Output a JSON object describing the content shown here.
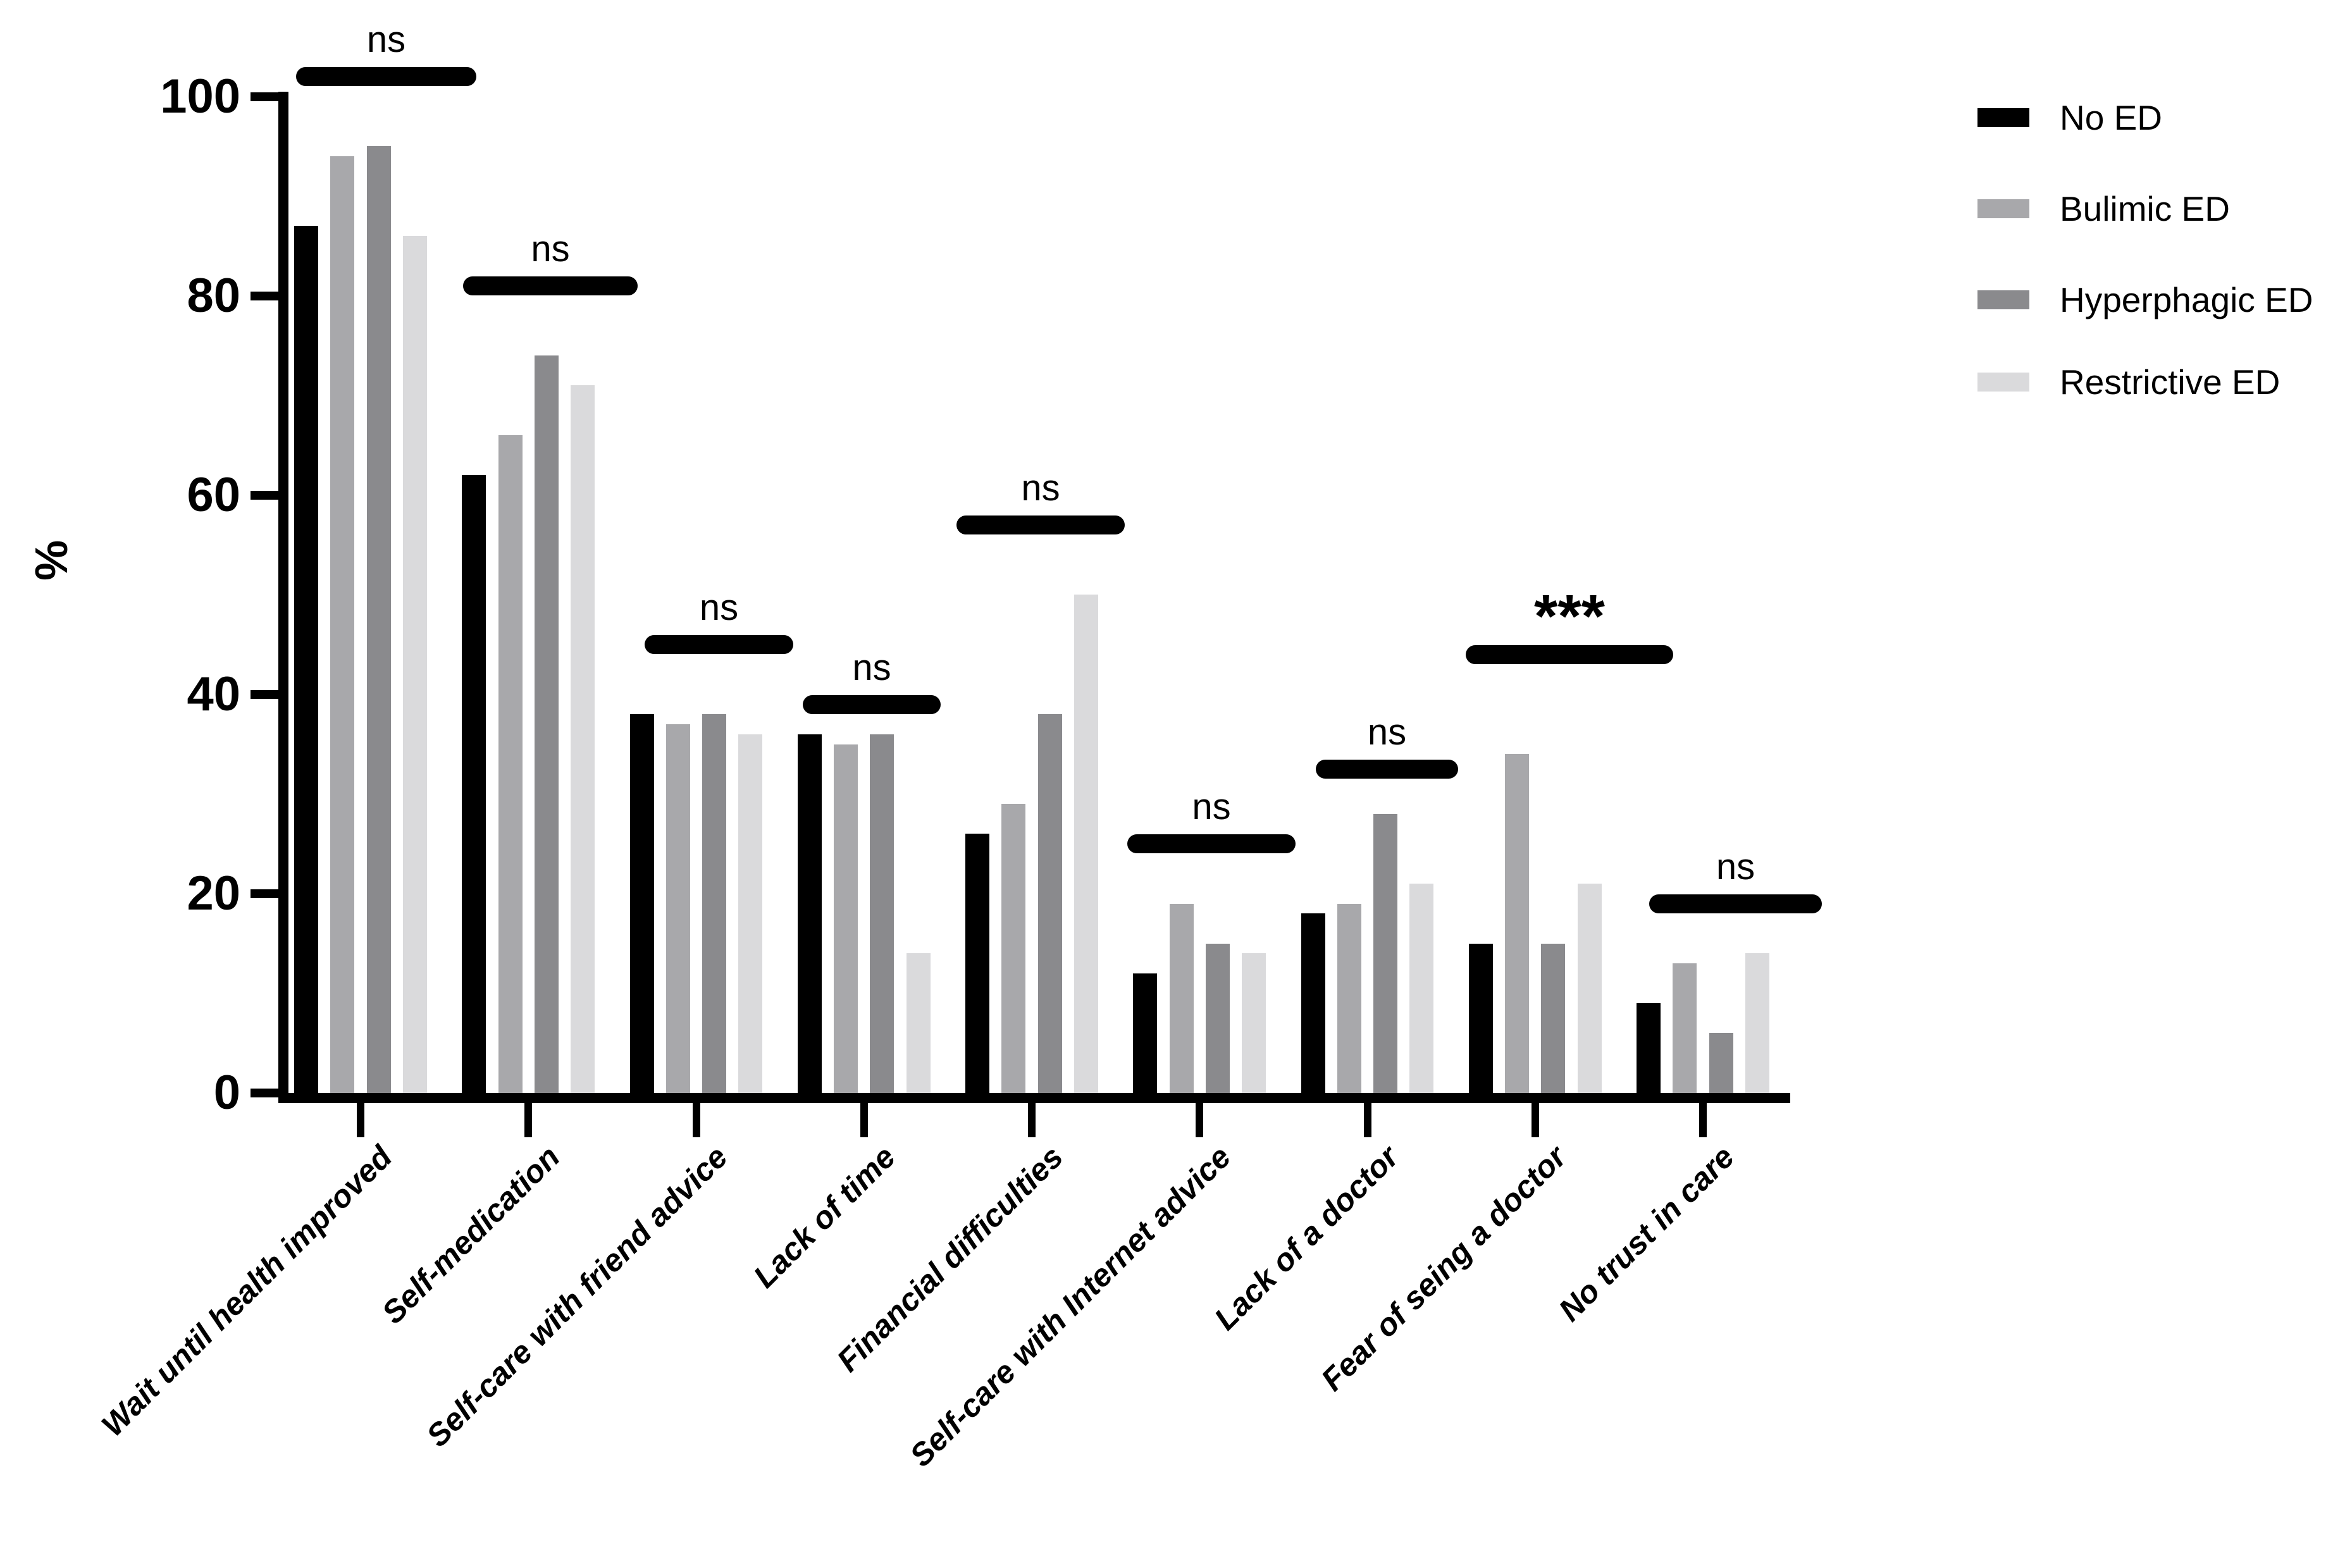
{
  "figure": {
    "background": "#ffffff",
    "text_color": "#000000"
  },
  "chart_data": {
    "type": "bar",
    "title": "",
    "xlabel": "",
    "ylabel": "%",
    "ylim": [
      0,
      100
    ],
    "yticks": [
      0,
      20,
      40,
      60,
      80,
      100
    ],
    "grid": false,
    "legend_position": "top-right",
    "categories": [
      "Wait until health improved",
      "Self-medication",
      "Self-care with friend advice",
      "Lack of time",
      "Financial difficulties",
      "Self-care with Internet advice",
      "Lack of a doctor",
      "Fear of seing a doctor",
      "No trust in care"
    ],
    "series": [
      {
        "name": "No ED",
        "color": "#000000",
        "values": [
          87,
          62,
          38,
          36,
          26,
          12,
          18,
          15,
          9
        ]
      },
      {
        "name": "Bulimic ED",
        "color": "#a8a8ab",
        "values": [
          94,
          66,
          37,
          35,
          29,
          19,
          19,
          34,
          13
        ]
      },
      {
        "name": "Hyperphagic ED",
        "color": "#8a8a8d",
        "values": [
          95,
          74,
          38,
          36,
          38,
          15,
          28,
          15,
          6
        ]
      },
      {
        "name": "Restrictive ED",
        "color": "#dadadc",
        "values": [
          86,
          71,
          36,
          14,
          50,
          14,
          21,
          21,
          14
        ]
      }
    ],
    "annotations": [
      {
        "label": "ns",
        "y_pct": 102,
        "x1": 468,
        "x2": 753
      },
      {
        "label": "ns",
        "y_pct": 81,
        "x1": 732,
        "x2": 1008
      },
      {
        "label": "ns",
        "y_pct": 45,
        "x1": 1019,
        "x2": 1254
      },
      {
        "label": "ns",
        "y_pct": 39,
        "x1": 1269,
        "x2": 1487
      },
      {
        "label": "ns",
        "y_pct": 57,
        "x1": 1512,
        "x2": 1778
      },
      {
        "label": "ns",
        "y_pct": 25,
        "x1": 1782,
        "x2": 2048
      },
      {
        "label": "ns",
        "y_pct": 32.5,
        "x1": 2080,
        "x2": 2305
      },
      {
        "label": "***",
        "y_pct": 44,
        "x1": 2317,
        "x2": 2645
      },
      {
        "label": "ns",
        "y_pct": 19,
        "x1": 2607,
        "x2": 2880
      }
    ]
  }
}
